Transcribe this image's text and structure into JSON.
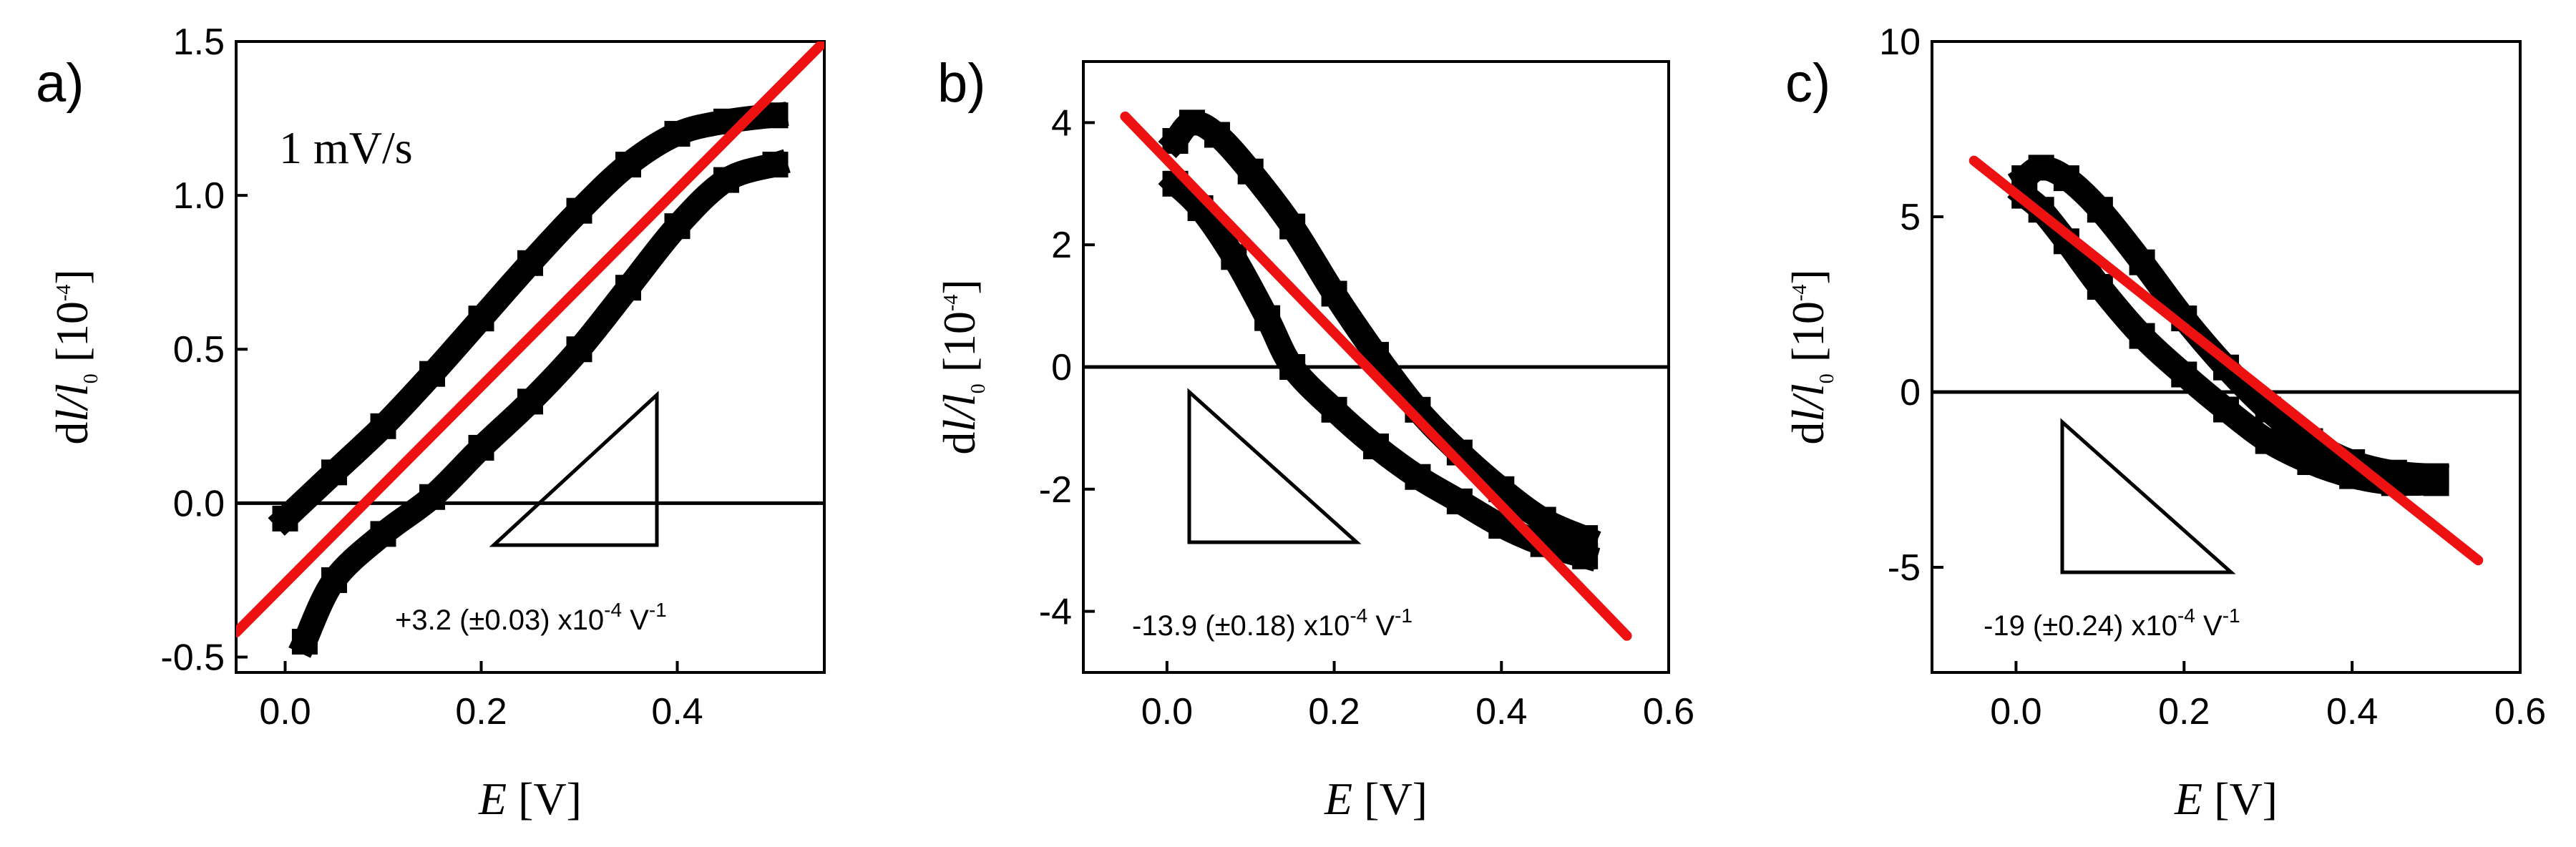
{
  "colors": {
    "data": "#000000",
    "fit": "#ee1111",
    "axes": "#000000"
  },
  "chart_data": [
    {
      "type": "scatter",
      "panel": "a)",
      "xlabel": "E [V]",
      "ylabel": "dl/l0 [10^-4]",
      "xlabel_var": "E",
      "xlabel_unit": " [V]",
      "ylabel_var": "d",
      "ylabel_mid": "l/l",
      "ylabel_sub": "0",
      "ylabel_unit": " [10",
      "ylabel_exp": "-4",
      "ylabel_close": "]",
      "annotation": "1 mV/s",
      "xlim": [
        -0.05,
        0.55
      ],
      "ylim": [
        -0.55,
        1.5
      ],
      "xticks": [
        0.0,
        0.2,
        0.4
      ],
      "xtick_labels": [
        "0.0",
        "0.2",
        "0.4"
      ],
      "yticks": [
        -0.5,
        0.0,
        0.5,
        1.0,
        1.5
      ],
      "ytick_labels": [
        "-0.5",
        "0.0",
        "0.5",
        "1.0",
        "1.5"
      ],
      "zero_line": true,
      "fit_line": {
        "x": [
          -0.05,
          0.55
        ],
        "y": [
          -0.42,
          1.5
        ]
      },
      "slope_text": {
        "pre": "+3.2 (±0.03) x10",
        "exp": "-4",
        "post": " V",
        "unit_exp": "-1"
      },
      "triangle_direction": "up",
      "loops": [
        {
          "x": [
            0.0,
            0.05,
            0.1,
            0.15,
            0.2,
            0.25,
            0.3,
            0.35,
            0.4,
            0.45,
            0.5
          ],
          "y": [
            -0.05,
            0.1,
            0.25,
            0.42,
            0.6,
            0.78,
            0.95,
            1.1,
            1.2,
            1.24,
            1.26
          ]
        },
        {
          "x": [
            0.5,
            0.45,
            0.4,
            0.35,
            0.3,
            0.25,
            0.2,
            0.15,
            0.1,
            0.05,
            0.02
          ],
          "y": [
            1.1,
            1.05,
            0.9,
            0.7,
            0.5,
            0.33,
            0.18,
            0.02,
            -0.1,
            -0.25,
            -0.45
          ]
        }
      ]
    },
    {
      "type": "scatter",
      "panel": "b)",
      "xlabel": "E [V]",
      "ylabel": "dl/l0 [10^-4]",
      "xlabel_var": "E",
      "xlabel_unit": " [V]",
      "ylabel_var": "d",
      "ylabel_mid": "l/l",
      "ylabel_sub": "0",
      "ylabel_unit": " [10",
      "ylabel_exp": "-4",
      "ylabel_close": "]",
      "xlim": [
        -0.1,
        0.6
      ],
      "ylim": [
        -5.0,
        5.0
      ],
      "xticks": [
        0.0,
        0.2,
        0.4,
        0.6
      ],
      "xtick_labels": [
        "0.0",
        "0.2",
        "0.4",
        "0.6"
      ],
      "yticks": [
        -4,
        -2,
        0,
        2,
        4
      ],
      "ytick_labels": [
        "-4",
        "-2",
        "0",
        "2",
        "4"
      ],
      "zero_line": true,
      "fit_line": {
        "x": [
          -0.05,
          0.55
        ],
        "y": [
          4.1,
          -4.4
        ]
      },
      "slope_text": {
        "pre": "-13.9 (±0.18) x10",
        "exp": "-4",
        "post": " V",
        "unit_exp": "-1"
      },
      "triangle_direction": "down",
      "loops": [
        {
          "x": [
            0.01,
            0.03,
            0.06,
            0.1,
            0.15,
            0.2,
            0.25,
            0.3,
            0.35,
            0.4,
            0.45,
            0.5
          ],
          "y": [
            3.7,
            4.0,
            3.8,
            3.2,
            2.3,
            1.2,
            0.2,
            -0.7,
            -1.4,
            -2.0,
            -2.5,
            -2.8
          ]
        },
        {
          "x": [
            0.5,
            0.45,
            0.4,
            0.35,
            0.3,
            0.25,
            0.2,
            0.15,
            0.12,
            0.08,
            0.04,
            0.01
          ],
          "y": [
            -3.1,
            -2.9,
            -2.6,
            -2.2,
            -1.8,
            -1.3,
            -0.7,
            0.0,
            0.8,
            1.8,
            2.6,
            3.0
          ]
        }
      ]
    },
    {
      "type": "scatter",
      "panel": "c)",
      "xlabel": "E [V]",
      "ylabel": "dl/l0 [10^-4]",
      "xlabel_var": "E",
      "xlabel_unit": " [V]",
      "ylabel_var": "d",
      "ylabel_mid": "l/l",
      "ylabel_sub": "0",
      "ylabel_unit": " [10",
      "ylabel_exp": "-4",
      "ylabel_close": "]",
      "xlim": [
        -0.1,
        0.6
      ],
      "ylim": [
        -8.0,
        10.0
      ],
      "xticks": [
        0.0,
        0.2,
        0.4,
        0.6
      ],
      "xtick_labels": [
        "0.0",
        "0.2",
        "0.4",
        "0.6"
      ],
      "yticks": [
        -5,
        0,
        5,
        10
      ],
      "ytick_labels": [
        "-5",
        "0",
        "5",
        "10"
      ],
      "zero_line": true,
      "fit_line": {
        "x": [
          -0.05,
          0.55
        ],
        "y": [
          6.6,
          -4.8
        ]
      },
      "slope_text": {
        "pre": "-19 (±0.24) x10",
        "exp": "-4",
        "post": " V",
        "unit_exp": "-1"
      },
      "triangle_direction": "down",
      "loops": [
        {
          "x": [
            0.01,
            0.03,
            0.06,
            0.1,
            0.15,
            0.2,
            0.25,
            0.3,
            0.35,
            0.4,
            0.45,
            0.5
          ],
          "y": [
            6.1,
            6.4,
            6.1,
            5.2,
            3.7,
            2.1,
            0.7,
            -0.5,
            -1.4,
            -2.0,
            -2.3,
            -2.4
          ]
        },
        {
          "x": [
            0.5,
            0.45,
            0.4,
            0.35,
            0.3,
            0.25,
            0.2,
            0.15,
            0.1,
            0.06,
            0.03,
            0.01
          ],
          "y": [
            -2.6,
            -2.6,
            -2.4,
            -2.0,
            -1.4,
            -0.5,
            0.5,
            1.6,
            3.0,
            4.3,
            5.2,
            5.6
          ]
        }
      ]
    }
  ]
}
